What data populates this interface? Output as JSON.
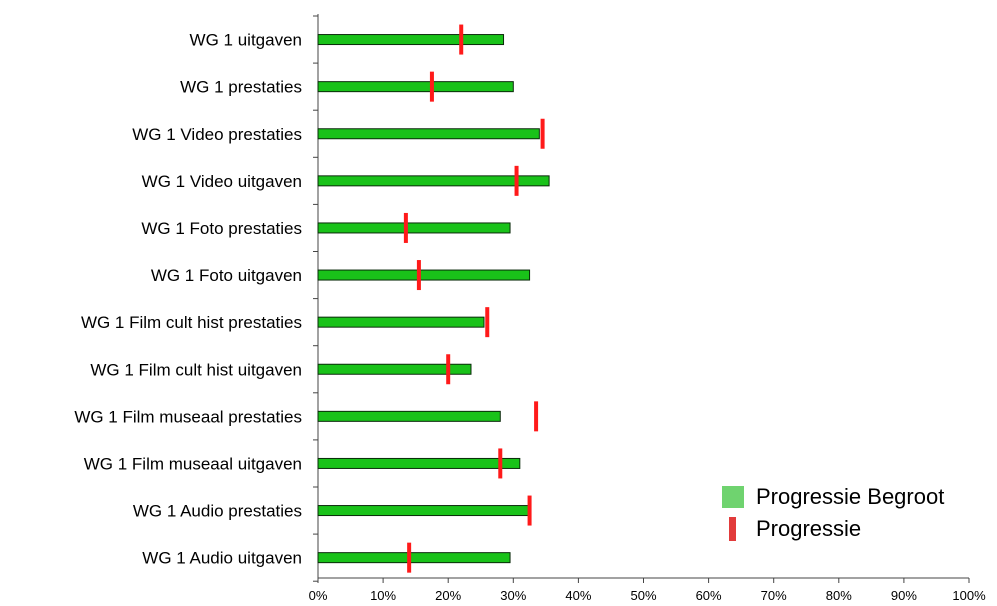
{
  "chart_data": {
    "type": "bar",
    "orientation": "horizontal",
    "categories": [
      "WG 1   uitgaven",
      "WG 1   prestaties",
      "WG 1  Video prestaties",
      "WG 1  Video uitgaven",
      "WG 1  Foto prestaties",
      "WG 1  Foto uitgaven",
      "WG 1  Film cult hist prestaties",
      "WG 1  Film cult hist uitgaven",
      "WG 1  Film museaal prestaties",
      "WG 1  Film museaal uitgaven",
      "WG 1  Audio prestaties",
      "WG 1  Audio uitgaven"
    ],
    "series": [
      {
        "name": "Progressie Begroot",
        "mark": "bar",
        "color": "#19c219",
        "values": [
          28.5,
          30,
          34,
          35.5,
          29.5,
          32.5,
          25.5,
          23.5,
          28,
          31,
          32.5,
          29.5
        ]
      },
      {
        "name": "Progressie",
        "mark": "tick",
        "color": "#ff1a1a",
        "values": [
          22,
          17.5,
          34.5,
          30.5,
          13.5,
          15.5,
          26,
          20,
          33.5,
          28,
          32.5,
          14
        ]
      }
    ],
    "xlim": [
      0,
      100
    ],
    "xticks": [
      "0%",
      "10%",
      "20%",
      "30%",
      "40%",
      "50%",
      "60%",
      "70%",
      "80%",
      "90%",
      "100%"
    ],
    "title": "",
    "xlabel": "",
    "ylabel": "",
    "legend_position": "bottom-right",
    "grid": false
  },
  "legend": {
    "items": [
      {
        "label": "Progressie Begroot",
        "color": "#6fd36f"
      },
      {
        "label": "Progressie",
        "color": "#e23b3b"
      }
    ]
  }
}
